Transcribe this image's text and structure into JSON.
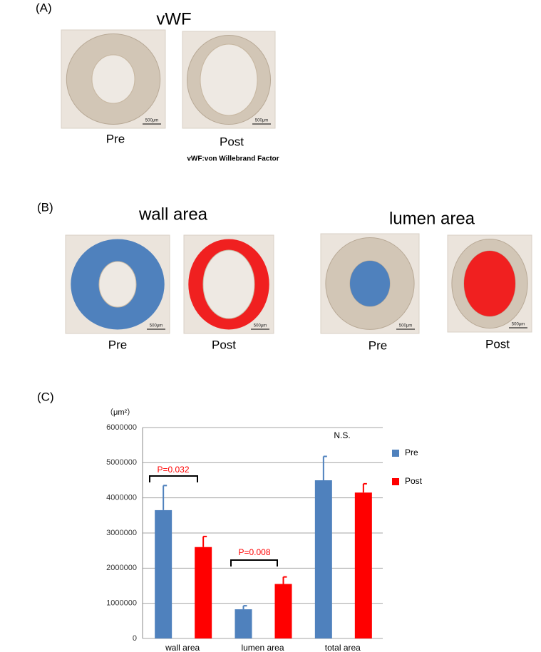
{
  "panel_a": {
    "label": "(A)",
    "title": "vWF",
    "images": [
      {
        "label": "Pre",
        "scale": "500μm"
      },
      {
        "label": "Post",
        "scale": "500μm"
      }
    ],
    "footnote": "vWF:von Willebrand Factor"
  },
  "panel_b": {
    "label": "(B)",
    "groups": [
      {
        "title": "wall area",
        "images": [
          {
            "label": "Pre",
            "scale": "500μm"
          },
          {
            "label": "Post",
            "scale": "500μm"
          }
        ]
      },
      {
        "title": "lumen area",
        "images": [
          {
            "label": "Pre",
            "scale": "500μm"
          },
          {
            "label": "Post",
            "scale": "500μm"
          }
        ]
      }
    ]
  },
  "panel_c": {
    "label": "(C)"
  },
  "chart_data": {
    "type": "bar",
    "y_unit": "（μm²）",
    "categories": [
      "wall area",
      "lumen area",
      "total area"
    ],
    "series": [
      {
        "name": "Pre",
        "color": "#4f81bd",
        "values": [
          3650000,
          830000,
          4500000
        ],
        "errors": [
          700000,
          100000,
          680000
        ]
      },
      {
        "name": "Post",
        "color": "#ff0000",
        "values": [
          2600000,
          1550000,
          4150000
        ],
        "errors": [
          300000,
          200000,
          250000
        ]
      }
    ],
    "ylim": [
      0,
      6000000
    ],
    "yticks": [
      0,
      1000000,
      2000000,
      3000000,
      4000000,
      5000000,
      6000000
    ],
    "grid": true,
    "legend": "right",
    "annotations": [
      "P=0.032",
      "P=0.008",
      "N.S."
    ]
  }
}
